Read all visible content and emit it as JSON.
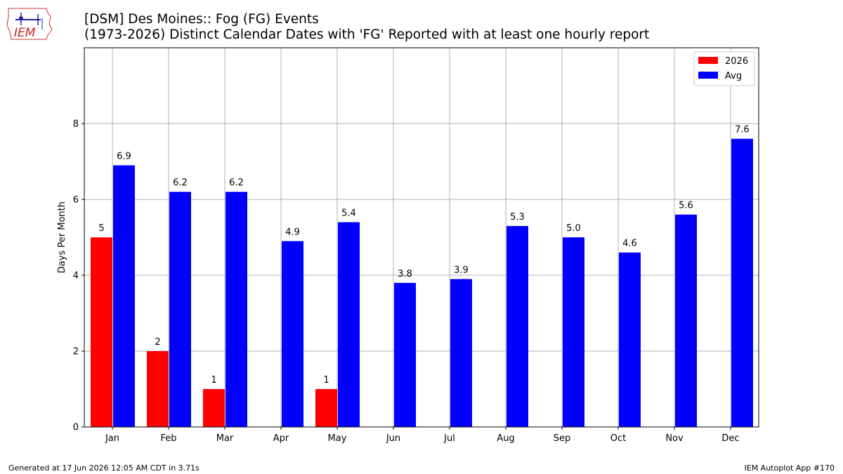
{
  "header": {
    "title_line1": "[DSM] Des Moines:: Fog (FG) Events",
    "title_line2": "(1973-2026) Distinct Calendar Dates with 'FG' Reported with at least one hourly report",
    "logo_text": "IEM"
  },
  "footer": {
    "left": "Generated at 17 Jun 2026 12:05 AM CDT in 3.71s",
    "right": "IEM Autoplot App #170"
  },
  "chart_data": {
    "type": "bar",
    "title": "[DSM] Des Moines:: Fog (FG) Events",
    "subtitle": "(1973-2026) Distinct Calendar Dates with 'FG' Reported with at least one hourly report",
    "xlabel": "",
    "ylabel": "Days Per Month",
    "ylim": [
      0,
      10
    ],
    "yticks": [
      0,
      2,
      4,
      6,
      8
    ],
    "grid": true,
    "legend_position": "top-right",
    "categories": [
      "Jan",
      "Feb",
      "Mar",
      "Apr",
      "May",
      "Jun",
      "Jul",
      "Aug",
      "Sep",
      "Oct",
      "Nov",
      "Dec"
    ],
    "series": [
      {
        "name": "2026",
        "color": "#ff0000",
        "values": [
          5,
          2,
          1,
          null,
          1,
          null,
          null,
          null,
          null,
          null,
          null,
          null
        ],
        "labels": [
          "5",
          "2",
          "1",
          "",
          "1",
          "",
          "",
          "",
          "",
          "",
          "",
          ""
        ]
      },
      {
        "name": "Avg",
        "color": "#0000ff",
        "values": [
          6.9,
          6.2,
          6.2,
          4.9,
          5.4,
          3.8,
          3.9,
          5.3,
          5.0,
          4.6,
          5.6,
          7.6
        ],
        "labels": [
          "6.9",
          "6.2",
          "6.2",
          "4.9",
          "5.4",
          "3.8",
          "3.9",
          "5.3",
          "5.0",
          "4.6",
          "5.6",
          "7.6"
        ]
      }
    ]
  }
}
